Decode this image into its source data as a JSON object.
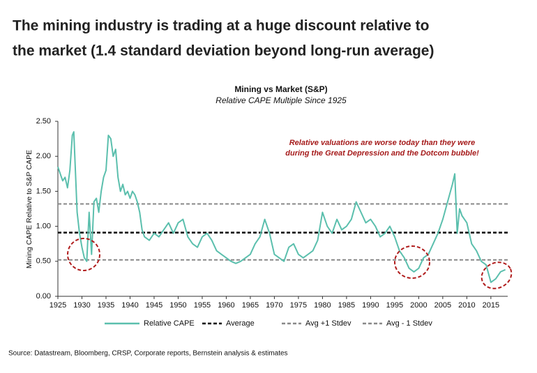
{
  "headline": [
    "The mining industry is trading at a huge discount relative to",
    "the market (1.4 standard deviation beyond long-run average)"
  ],
  "source": "Source: Datastream, Bloomberg, CRSP, Corporate reports, Bernstein analysis & estimates",
  "chart_data": {
    "type": "line",
    "title": "Mining vs Market (S&P)",
    "subtitle": "Relative CAPE Multiple Since 1925",
    "y_label": "Mining CAPE Relative to S&P CAPE",
    "annotation": [
      "Relative valuations are worse today than they were",
      "during the Great Depression and the Dotcom bubble!"
    ],
    "x": [
      1925,
      1925.5,
      1926,
      1926.5,
      1927,
      1927.5,
      1928,
      1928.3,
      1928.7,
      1929,
      1929.5,
      1930,
      1930.5,
      1931,
      1931.5,
      1932,
      1932.5,
      1933,
      1933.5,
      1934,
      1934.5,
      1935,
      1935.5,
      1936,
      1936.5,
      1937,
      1937.5,
      1938,
      1938.5,
      1939,
      1939.5,
      1940,
      1940.5,
      1941,
      1941.5,
      1942,
      1942.5,
      1943,
      1944,
      1945,
      1946,
      1947,
      1948,
      1949,
      1950,
      1951,
      1952,
      1953,
      1954,
      1955,
      1956,
      1957,
      1958,
      1959,
      1960,
      1961,
      1962,
      1963,
      1964,
      1965,
      1966,
      1967,
      1968,
      1969,
      1970,
      1971,
      1972,
      1973,
      1974,
      1975,
      1976,
      1977,
      1978,
      1979,
      1980,
      1981,
      1982,
      1983,
      1984,
      1985,
      1986,
      1987,
      1988,
      1989,
      1990,
      1991,
      1992,
      1993,
      1994,
      1995,
      1996,
      1997,
      1998,
      1999,
      2000,
      2001,
      2002,
      2003,
      2004,
      2005,
      2006,
      2007,
      2007.5,
      2008,
      2008.5,
      2009,
      2010,
      2011,
      2012,
      2013,
      2014,
      2015,
      2016,
      2017,
      2018
    ],
    "series": [
      {
        "name": "Relative CAPE",
        "color": "#5bbfad",
        "values": [
          1.85,
          1.75,
          1.65,
          1.7,
          1.55,
          1.8,
          2.3,
          2.35,
          1.7,
          1.2,
          0.9,
          0.7,
          0.55,
          0.5,
          1.2,
          0.6,
          1.35,
          1.4,
          1.2,
          1.5,
          1.7,
          1.8,
          2.3,
          2.25,
          2.0,
          2.1,
          1.7,
          1.5,
          1.6,
          1.45,
          1.5,
          1.4,
          1.5,
          1.45,
          1.35,
          1.2,
          0.95,
          0.85,
          0.8,
          0.9,
          0.85,
          0.95,
          1.05,
          0.9,
          1.05,
          1.1,
          0.85,
          0.75,
          0.7,
          0.85,
          0.9,
          0.8,
          0.65,
          0.6,
          0.55,
          0.5,
          0.47,
          0.5,
          0.55,
          0.6,
          0.75,
          0.85,
          1.1,
          0.9,
          0.6,
          0.55,
          0.5,
          0.7,
          0.75,
          0.6,
          0.55,
          0.6,
          0.65,
          0.8,
          1.2,
          1.0,
          0.9,
          1.1,
          0.95,
          1.0,
          1.1,
          1.35,
          1.2,
          1.05,
          1.1,
          1.0,
          0.85,
          0.9,
          1.0,
          0.85,
          0.65,
          0.55,
          0.4,
          0.35,
          0.4,
          0.55,
          0.6,
          0.75,
          0.9,
          1.1,
          1.35,
          1.6,
          1.75,
          0.9,
          1.25,
          1.15,
          1.05,
          0.75,
          0.65,
          0.5,
          0.45,
          0.2,
          0.25,
          0.35,
          0.38
        ]
      }
    ],
    "reference_lines": [
      {
        "name": "Average",
        "value": 0.91,
        "color": "#000000"
      },
      {
        "name": "Avg +1 Stdev",
        "value": 1.32,
        "color": "#888888"
      },
      {
        "name": "Avg - 1 Stdev",
        "value": 0.52,
        "color": "#888888"
      }
    ],
    "xlim": [
      1925,
      2018.5
    ],
    "xticks": [
      1925,
      1930,
      1935,
      1940,
      1945,
      1950,
      1955,
      1960,
      1965,
      1970,
      1975,
      1980,
      1985,
      1990,
      1995,
      2000,
      2005,
      2010,
      2015
    ],
    "ylim": [
      0,
      2.5
    ],
    "yticks": [
      {
        "value": 0,
        "label": "0.00"
      },
      {
        "value": 0.5,
        "label": "0.50"
      },
      {
        "value": 1,
        "label": "1.00"
      },
      {
        "value": 1.5,
        "label": "1.50"
      },
      {
        "value": 2,
        "label": "2.00"
      },
      {
        "value": 2.5,
        "label": "2.50"
      }
    ]
  }
}
